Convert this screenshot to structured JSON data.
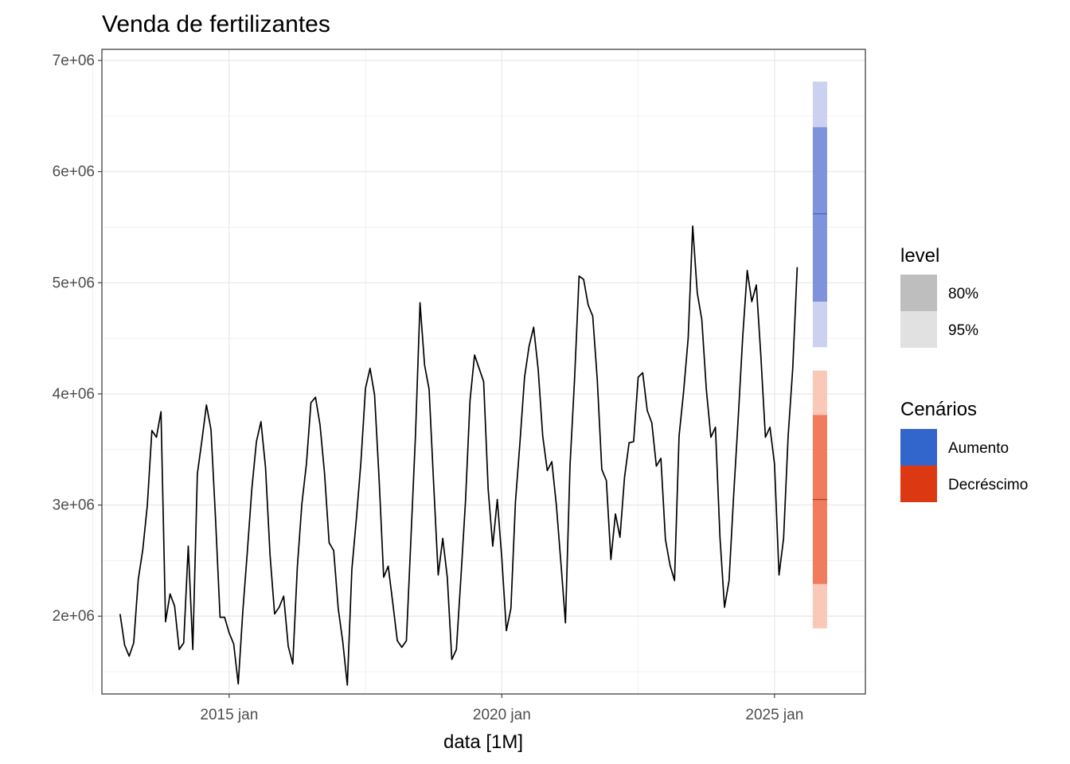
{
  "chart_data": {
    "type": "line",
    "title": "Venda de fertilizantes",
    "xlabel": "data [1M]",
    "ylabel": "",
    "x_ticks": [
      "2015 jan",
      "2020 jan",
      "2025 jan"
    ],
    "y_ticks": [
      "2e+06",
      "3e+06",
      "4e+06",
      "5e+06",
      "6e+06",
      "7e+06"
    ],
    "y_tick_values": [
      2000000,
      3000000,
      4000000,
      5000000,
      6000000,
      7000000
    ],
    "xlim": [
      "2012-09",
      "2026-09"
    ],
    "ylim": [
      1300000,
      7100000
    ],
    "grid": true,
    "legend_position": "right",
    "series": [
      {
        "start": "2013-01",
        "values": [
          2020000,
          1740000,
          1640000,
          1760000,
          2330000,
          2600000,
          3000000,
          3670000,
          3610000,
          3840000,
          1950000,
          2200000,
          2090000,
          1700000,
          1760000,
          2630000,
          1700000,
          3280000,
          3580000,
          3900000,
          3680000,
          2880000,
          1990000,
          1990000,
          1850000,
          1750000,
          1390000,
          2040000,
          2580000,
          3150000,
          3570000,
          3750000,
          3340000,
          2550000,
          2020000,
          2080000,
          2180000,
          1730000,
          1570000,
          2440000,
          3010000,
          3370000,
          3920000,
          3970000,
          3720000,
          3280000,
          2660000,
          2590000,
          2070000,
          1770000,
          1380000,
          2420000,
          2880000,
          3390000,
          4050000,
          4230000,
          3990000,
          3230000,
          2350000,
          2450000,
          2120000,
          1780000,
          1720000,
          1780000,
          2700000,
          3630000,
          4820000,
          4260000,
          4040000,
          3190000,
          2370000,
          2700000,
          2350000,
          1610000,
          1700000,
          2350000,
          3030000,
          3940000,
          4350000,
          4230000,
          4110000,
          3140000,
          2630000,
          3050000,
          2520000,
          1870000,
          2070000,
          3030000,
          3570000,
          4150000,
          4430000,
          4600000,
          4220000,
          3620000,
          3310000,
          3390000,
          3000000,
          2480000,
          1940000,
          3350000,
          4130000,
          5060000,
          5030000,
          4800000,
          4700000,
          4130000,
          3320000,
          3220000,
          2510000,
          2920000,
          2710000,
          3250000,
          3560000,
          3570000,
          4150000,
          4190000,
          3850000,
          3740000,
          3350000,
          3420000,
          2690000,
          2460000,
          2320000,
          3620000,
          4020000,
          4500000,
          5510000,
          4910000,
          4670000,
          4040000,
          3610000,
          3700000,
          2710000,
          2080000,
          2320000,
          3080000,
          3770000,
          4510000,
          5110000,
          4830000,
          4980000,
          4340000,
          3610000,
          3700000,
          3370000,
          2370000,
          2700000,
          3620000,
          4220000,
          5140000
        ]
      }
    ],
    "forecasts": [
      {
        "scenario": "Aumento",
        "date": "2025-11",
        "mean": 5620000,
        "lo80": 4830000,
        "hi80": 6400000,
        "lo95": 4420000,
        "hi95": 6810000
      },
      {
        "scenario": "Decréscimo",
        "date": "2025-11",
        "mean": 3050000,
        "lo80": 2290000,
        "hi80": 3810000,
        "lo95": 1890000,
        "hi95": 4210000
      }
    ],
    "legend_level": {
      "title": "level",
      "items": [
        {
          "label": "80%",
          "color": "#bebebe"
        },
        {
          "label": "95%",
          "color": "#e1e1e1"
        }
      ]
    },
    "legend_scenarios": {
      "title": "Cenários",
      "items": [
        {
          "label": "Aumento",
          "color": "#3366cc"
        },
        {
          "label": "Decréscimo",
          "color": "#dc3912"
        }
      ]
    },
    "colors": {
      "line": "#000000",
      "aumento_80": "#7f92dc",
      "aumento_95": "#ccd1f0",
      "aumento_mean": "#3366cc",
      "decrescimo_80": "#f07c5d",
      "decrescimo_95": "#fac8b8",
      "decrescimo_mean": "#c0391b",
      "grid": "#ebebeb",
      "panel_border": "#333333"
    }
  }
}
